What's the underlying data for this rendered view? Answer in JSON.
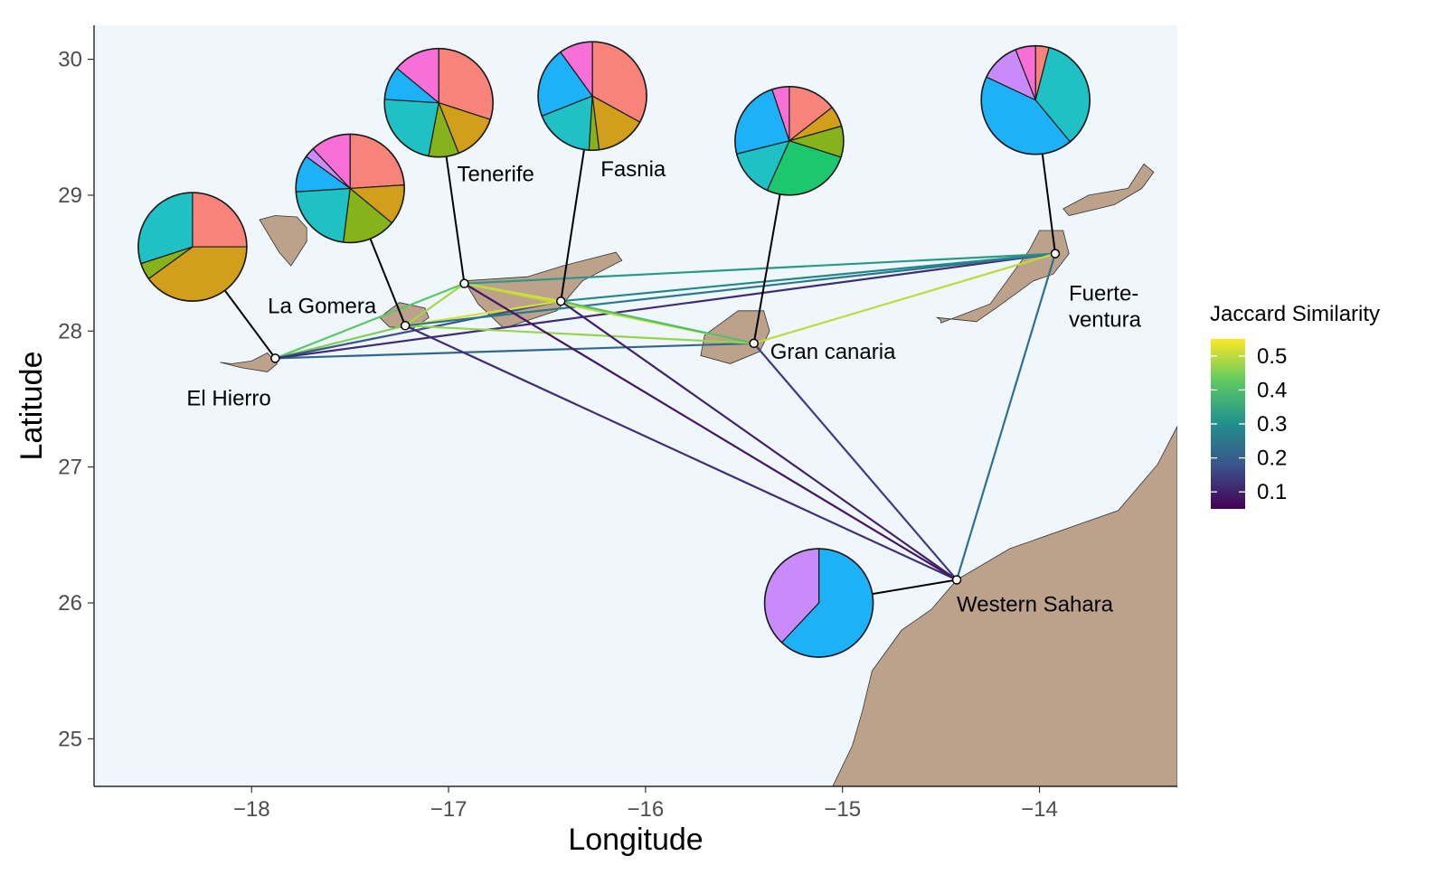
{
  "chart_data": {
    "type": "map",
    "xlabel": "Longitude",
    "ylabel": "Latitude",
    "xlim": [
      -18.8,
      -13.3
    ],
    "ylim": [
      24.65,
      30.25
    ],
    "x_ticks": [
      {
        "value": -18,
        "label": "−18"
      },
      {
        "value": -17,
        "label": "−17"
      },
      {
        "value": -16,
        "label": "−16"
      },
      {
        "value": -15,
        "label": "−15"
      },
      {
        "value": -14,
        "label": "−14"
      }
    ],
    "y_ticks": [
      {
        "value": 25,
        "label": "25"
      },
      {
        "value": 26,
        "label": "26"
      },
      {
        "value": 27,
        "label": "27"
      },
      {
        "value": 28,
        "label": "28"
      },
      {
        "value": 29,
        "label": "29"
      },
      {
        "value": 30,
        "label": "30"
      }
    ],
    "colors": {
      "panel_background": "#eff7fd",
      "land": "#bca18b",
      "land_outline": "#333333",
      "leader_line": "#000000",
      "site_point_fill": "#ffffff"
    },
    "sites": [
      {
        "id": "el-hierro",
        "label": "El Hierro",
        "lon": -17.88,
        "lat": 27.8,
        "pie_lon": -18.3,
        "pie_lat": 28.62,
        "pie": [
          {
            "group": "salmon",
            "value": 0.25,
            "color": "#f8837a"
          },
          {
            "group": "olive",
            "value": 0.4,
            "color": "#d29f1d"
          },
          {
            "group": "green",
            "value": 0.05,
            "color": "#86b21b"
          },
          {
            "group": "teal",
            "value": 0.3,
            "color": "#1fc1c4"
          }
        ]
      },
      {
        "id": "la-gomera",
        "label": "La Gomera",
        "lon": -17.22,
        "lat": 28.04,
        "pie_lon": -17.5,
        "pie_lat": 29.05,
        "pie": [
          {
            "group": "salmon",
            "value": 0.24,
            "color": "#f8837a"
          },
          {
            "group": "olive",
            "value": 0.12,
            "color": "#d29f1d"
          },
          {
            "group": "green",
            "value": 0.16,
            "color": "#86b21b"
          },
          {
            "group": "teal",
            "value": 0.22,
            "color": "#1fc1c4"
          },
          {
            "group": "blue",
            "value": 0.11,
            "color": "#1db2f8"
          },
          {
            "group": "violet",
            "value": 0.03,
            "color": "#c98bfa"
          },
          {
            "group": "pink",
            "value": 0.12,
            "color": "#f76fd7"
          }
        ]
      },
      {
        "id": "tenerife",
        "label": "Tenerife",
        "lon": -16.92,
        "lat": 28.35,
        "pie_lon": -17.05,
        "pie_lat": 29.68,
        "pie": [
          {
            "group": "salmon",
            "value": 0.3,
            "color": "#f8837a"
          },
          {
            "group": "olive",
            "value": 0.14,
            "color": "#d29f1d"
          },
          {
            "group": "green",
            "value": 0.09,
            "color": "#86b21b"
          },
          {
            "group": "teal",
            "value": 0.23,
            "color": "#1fc1c4"
          },
          {
            "group": "blue",
            "value": 0.1,
            "color": "#1db2f8"
          },
          {
            "group": "pink",
            "value": 0.14,
            "color": "#f76fd7"
          }
        ]
      },
      {
        "id": "fasnia",
        "label": "Fasnia",
        "lon": -16.43,
        "lat": 28.22,
        "pie_lon": -16.27,
        "pie_lat": 29.73,
        "pie": [
          {
            "group": "salmon",
            "value": 0.33,
            "color": "#f8837a"
          },
          {
            "group": "olive",
            "value": 0.15,
            "color": "#d29f1d"
          },
          {
            "group": "green",
            "value": 0.03,
            "color": "#86b21b"
          },
          {
            "group": "teal",
            "value": 0.18,
            "color": "#1fc1c4"
          },
          {
            "group": "blue",
            "value": 0.21,
            "color": "#1db2f8"
          },
          {
            "group": "pink",
            "value": 0.1,
            "color": "#f76fd7"
          }
        ]
      },
      {
        "id": "gran-canaria",
        "label": "Gran canaria",
        "lon": -15.45,
        "lat": 27.91,
        "pie_lon": -15.27,
        "pie_lat": 29.4,
        "pie": [
          {
            "group": "salmon",
            "value": 0.14,
            "color": "#f8837a"
          },
          {
            "group": "olive",
            "value": 0.06,
            "color": "#d29f1d"
          },
          {
            "group": "green",
            "value": 0.09,
            "color": "#86b21b"
          },
          {
            "group": "emerald",
            "value": 0.26,
            "color": "#1dc76e"
          },
          {
            "group": "teal",
            "value": 0.14,
            "color": "#1fc1c4"
          },
          {
            "group": "blue",
            "value": 0.23,
            "color": "#1db2f8"
          },
          {
            "group": "pink",
            "value": 0.05,
            "color": "#f76fd7"
          }
        ]
      },
      {
        "id": "fuerteventura",
        "label": "Fuerte-\nventura",
        "label_lines": [
          "Fuerte-",
          "ventura"
        ],
        "lon": -13.92,
        "lat": 28.57,
        "pie_lon": -14.02,
        "pie_lat": 29.7,
        "pie": [
          {
            "group": "salmon",
            "value": 0.04,
            "color": "#f8837a"
          },
          {
            "group": "teal",
            "value": 0.35,
            "color": "#1fc1c4"
          },
          {
            "group": "blue",
            "value": 0.43,
            "color": "#1db2f8"
          },
          {
            "group": "violet",
            "value": 0.12,
            "color": "#c98bfa"
          },
          {
            "group": "pink",
            "value": 0.06,
            "color": "#f76fd7"
          }
        ]
      },
      {
        "id": "western-sahara",
        "label": "Western Sahara",
        "lon": -14.42,
        "lat": 26.17,
        "pie_lon": -15.12,
        "pie_lat": 26.0,
        "pie": [
          {
            "group": "blue",
            "value": 0.62,
            "color": "#1db2f8"
          },
          {
            "group": "violet",
            "value": 0.38,
            "color": "#c98bfa"
          }
        ]
      }
    ],
    "links": [
      {
        "from": "el-hierro",
        "to": "la-gomera",
        "jaccard": 0.45
      },
      {
        "from": "el-hierro",
        "to": "tenerife",
        "jaccard": 0.42
      },
      {
        "from": "el-hierro",
        "to": "fasnia",
        "jaccard": 0.18
      },
      {
        "from": "el-hierro",
        "to": "gran-canaria",
        "jaccard": 0.22
      },
      {
        "from": "el-hierro",
        "to": "fuerteventura",
        "jaccard": 0.12
      },
      {
        "from": "la-gomera",
        "to": "tenerife",
        "jaccard": 0.48
      },
      {
        "from": "la-gomera",
        "to": "fasnia",
        "jaccard": 0.52
      },
      {
        "from": "la-gomera",
        "to": "gran-canaria",
        "jaccard": 0.47
      },
      {
        "from": "la-gomera",
        "to": "fuerteventura",
        "jaccard": 0.25
      },
      {
        "from": "la-gomera",
        "to": "western-sahara",
        "jaccard": 0.12
      },
      {
        "from": "tenerife",
        "to": "fasnia",
        "jaccard": 0.52
      },
      {
        "from": "tenerife",
        "to": "gran-canaria",
        "jaccard": 0.5
      },
      {
        "from": "tenerife",
        "to": "fuerteventura",
        "jaccard": 0.32
      },
      {
        "from": "tenerife",
        "to": "western-sahara",
        "jaccard": 0.08
      },
      {
        "from": "fasnia",
        "to": "gran-canaria",
        "jaccard": 0.4
      },
      {
        "from": "fasnia",
        "to": "fuerteventura",
        "jaccard": 0.28
      },
      {
        "from": "fasnia",
        "to": "western-sahara",
        "jaccard": 0.1
      },
      {
        "from": "gran-canaria",
        "to": "fuerteventura",
        "jaccard": 0.5
      },
      {
        "from": "gran-canaria",
        "to": "western-sahara",
        "jaccard": 0.14
      },
      {
        "from": "fuerteventura",
        "to": "western-sahara",
        "jaccard": 0.24
      }
    ],
    "land": [
      {
        "name": "el-hierro-island",
        "coords": [
          [
            -18.16,
            27.77
          ],
          [
            -18.05,
            27.73
          ],
          [
            -17.92,
            27.7
          ],
          [
            -17.87,
            27.76
          ],
          [
            -17.92,
            27.84
          ],
          [
            -18.0,
            27.78
          ],
          [
            -18.1,
            27.76
          ]
        ]
      },
      {
        "name": "la-palma-island",
        "coords": [
          [
            -17.88,
            28.85
          ],
          [
            -17.77,
            28.84
          ],
          [
            -17.72,
            28.76
          ],
          [
            -17.72,
            28.66
          ],
          [
            -17.8,
            28.48
          ],
          [
            -17.86,
            28.58
          ],
          [
            -17.96,
            28.82
          ]
        ]
      },
      {
        "name": "la-gomera-island",
        "coords": [
          [
            -17.35,
            28.1
          ],
          [
            -17.25,
            28.21
          ],
          [
            -17.12,
            28.17
          ],
          [
            -17.1,
            28.1
          ],
          [
            -17.18,
            28.02
          ],
          [
            -17.3,
            28.03
          ]
        ]
      },
      {
        "name": "tenerife-island",
        "coords": [
          [
            -16.92,
            28.37
          ],
          [
            -16.6,
            28.4
          ],
          [
            -16.42,
            28.48
          ],
          [
            -16.15,
            28.58
          ],
          [
            -16.12,
            28.52
          ],
          [
            -16.32,
            28.37
          ],
          [
            -16.45,
            28.15
          ],
          [
            -16.72,
            28.02
          ],
          [
            -16.85,
            28.2
          ],
          [
            -16.9,
            28.32
          ]
        ]
      },
      {
        "name": "gran-canaria-island",
        "coords": [
          [
            -15.7,
            27.97
          ],
          [
            -15.53,
            28.15
          ],
          [
            -15.4,
            28.15
          ],
          [
            -15.37,
            28.0
          ],
          [
            -15.42,
            27.85
          ],
          [
            -15.57,
            27.76
          ],
          [
            -15.72,
            27.82
          ]
        ]
      },
      {
        "name": "fuerteventura-island",
        "coords": [
          [
            -14.52,
            28.1
          ],
          [
            -14.32,
            28.07
          ],
          [
            -14.21,
            28.18
          ],
          [
            -14.03,
            28.37
          ],
          [
            -13.93,
            28.42
          ],
          [
            -13.85,
            28.57
          ],
          [
            -13.88,
            28.74
          ],
          [
            -14.0,
            28.74
          ],
          [
            -14.05,
            28.6
          ],
          [
            -14.15,
            28.4
          ],
          [
            -14.25,
            28.2
          ],
          [
            -14.5,
            28.06
          ],
          [
            -14.5,
            28.08
          ]
        ]
      },
      {
        "name": "lanzarote-island",
        "coords": [
          [
            -13.88,
            28.9
          ],
          [
            -13.75,
            29.0
          ],
          [
            -13.55,
            29.05
          ],
          [
            -13.47,
            29.23
          ],
          [
            -13.42,
            29.17
          ],
          [
            -13.48,
            29.05
          ],
          [
            -13.62,
            28.93
          ],
          [
            -13.85,
            28.85
          ]
        ]
      },
      {
        "name": "african-mainland",
        "coords": [
          [
            -15.05,
            24.65
          ],
          [
            -14.95,
            24.95
          ],
          [
            -14.9,
            25.2
          ],
          [
            -14.85,
            25.5
          ],
          [
            -14.7,
            25.8
          ],
          [
            -14.55,
            25.95
          ],
          [
            -14.42,
            26.17
          ],
          [
            -14.15,
            26.4
          ],
          [
            -13.6,
            26.68
          ],
          [
            -13.4,
            27.02
          ],
          [
            -13.3,
            27.3
          ],
          [
            -13.3,
            24.65
          ]
        ]
      }
    ],
    "legend": {
      "title": "Jaccard Similarity",
      "placement": "right",
      "range": [
        0.05,
        0.55
      ],
      "ticks": [
        {
          "value": 0.1,
          "label": "0.1"
        },
        {
          "value": 0.2,
          "label": "0.2"
        },
        {
          "value": 0.3,
          "label": "0.3"
        },
        {
          "value": 0.4,
          "label": "0.4"
        },
        {
          "value": 0.5,
          "label": "0.5"
        }
      ],
      "stops": [
        "#440154",
        "#3b528b",
        "#21908c",
        "#5dc963",
        "#fde725"
      ]
    }
  }
}
